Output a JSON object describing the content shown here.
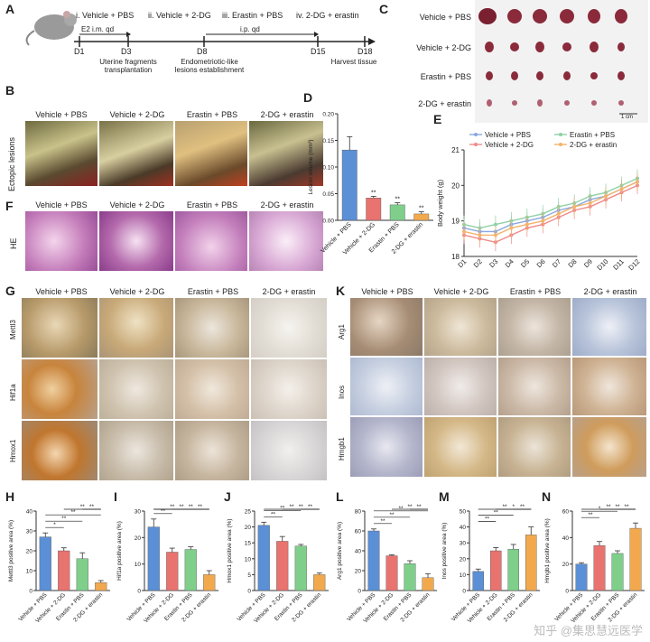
{
  "panels": {
    "A": "A",
    "B": "B",
    "C": "C",
    "D": "D",
    "E": "E",
    "F": "F",
    "G": "G",
    "H": "H",
    "I": "I",
    "J": "J",
    "K": "K",
    "L": "L",
    "M": "M",
    "N": "N"
  },
  "groups": [
    "Vehicle + PBS",
    "Vehicle + 2-DG",
    "Erastin + PBS",
    "2-DG + erastin"
  ],
  "panelA": {
    "steps": [
      "i. Vehicle + PBS",
      "ii. Vehicle + 2-DG",
      "iii. Erastin + PBS",
      "iv. 2-DG + erastin"
    ],
    "e2": "E2 i.m. qd",
    "ip": "i.p. qd",
    "days": [
      "D1",
      "D3",
      "D8",
      "D15",
      "D18"
    ],
    "notes": [
      "Uterine fragments\ntransplantation",
      "Endometriotic-like\nlesions establishment",
      "Harvest tissue"
    ]
  },
  "panelB": {
    "rowlabel": "Ectopic lesions"
  },
  "panelF": {
    "rowlabel": "HE"
  },
  "panelG": {
    "rows": [
      "Mettl3",
      "Hif1a",
      "Hmox1"
    ]
  },
  "panelK": {
    "rows": [
      "Arg1",
      "Inos",
      "Hmgb1"
    ]
  },
  "panelC": {
    "scale": "1 cm"
  },
  "colors": {
    "blue": "#5b8fd6",
    "red": "#e8736f",
    "green": "#7fcf8a",
    "orange": "#f2a94e",
    "lineBlue": "#8aa8e0",
    "lineRed": "#ef8a8a",
    "lineGreen": "#8fd1a6",
    "lineOrange": "#f3b36b"
  },
  "chart_data": [
    {
      "id": "D",
      "type": "bar",
      "categories": [
        "Vehicle + PBS",
        "Vehicle + 2-DG",
        "Erastin + PBS",
        "2-DG + erastin"
      ],
      "values": [
        0.132,
        0.042,
        0.029,
        0.012
      ],
      "errors": [
        0.025,
        0.003,
        0.004,
        0.004
      ],
      "ylabel": "Lesion volume (mm³)",
      "ylim": [
        0,
        0.2
      ],
      "yticks": [
        "0.00",
        "0.05",
        "0.10",
        "0.15",
        "0.20"
      ],
      "sig": [
        "**",
        "**",
        "**"
      ]
    },
    {
      "id": "E",
      "type": "line",
      "x": [
        "D1",
        "D2",
        "D3",
        "D4",
        "D5",
        "D6",
        "D7",
        "D8",
        "D9",
        "D10",
        "D11",
        "D12"
      ],
      "ylabel": "Body weight (g)",
      "ylim": [
        18,
        21
      ],
      "yticks": [
        "18",
        "19",
        "20",
        "21"
      ],
      "series": [
        {
          "name": "Vehicle + PBS",
          "values": [
            18.8,
            18.7,
            18.7,
            18.9,
            19.0,
            19.1,
            19.3,
            19.4,
            19.6,
            19.7,
            19.9,
            20.1
          ]
        },
        {
          "name": "Erastin + PBS",
          "values": [
            18.9,
            18.8,
            18.9,
            19.0,
            19.1,
            19.2,
            19.4,
            19.5,
            19.7,
            19.8,
            20.0,
            20.2
          ]
        },
        {
          "name": "Vehicle + 2-DG",
          "values": [
            18.6,
            18.5,
            18.4,
            18.6,
            18.8,
            18.9,
            19.1,
            19.3,
            19.4,
            19.6,
            19.8,
            20.0
          ]
        },
        {
          "name": "2-DG + erastin",
          "values": [
            18.7,
            18.6,
            18.6,
            18.8,
            18.9,
            19.0,
            19.2,
            19.4,
            19.5,
            19.7,
            19.9,
            20.1
          ]
        }
      ]
    },
    {
      "id": "H",
      "type": "bar",
      "categories": [
        "Vehicle + PBS",
        "Vehicle + 2-DG",
        "Erastin + PBS",
        "2-DG + erastin"
      ],
      "values": [
        27,
        20,
        16,
        4
      ],
      "errors": [
        2,
        1.5,
        3,
        1
      ],
      "ylabel": "Mettl3 positive area (%)",
      "ylim": [
        0,
        40
      ],
      "yticks": [
        "0",
        "10",
        "20",
        "30",
        "40"
      ],
      "sig": [
        "*",
        "**",
        "**",
        "**",
        "**"
      ]
    },
    {
      "id": "I",
      "type": "bar",
      "categories": [
        "Vehicle + PBS",
        "Vehicle + 2-DG",
        "Erastin + PBS",
        "2-DG + erastin"
      ],
      "values": [
        24,
        14.5,
        15.5,
        6
      ],
      "errors": [
        3,
        1.5,
        1,
        1.5
      ],
      "ylabel": "Hif1a positive area (%)",
      "ylim": [
        0,
        30
      ],
      "yticks": [
        "0",
        "10",
        "20",
        "30"
      ],
      "sig": [
        "**",
        "**",
        "**",
        "**",
        "**"
      ]
    },
    {
      "id": "J",
      "type": "bar",
      "categories": [
        "Vehicle + PBS",
        "Vehicle + 2-DG",
        "Erastin + PBS",
        "2-DG + erastin"
      ],
      "values": [
        20.5,
        15.5,
        14,
        5
      ],
      "errors": [
        1,
        1.5,
        0.5,
        0.5
      ],
      "ylabel": "Hmox1 positive area (%)",
      "ylim": [
        0,
        25
      ],
      "yticks": [
        "0",
        "5",
        "10",
        "15",
        "20",
        "25"
      ],
      "sig": [
        "**",
        "**",
        "**",
        "**",
        "**"
      ]
    },
    {
      "id": "L",
      "type": "bar",
      "categories": [
        "Vehicle + PBS",
        "Vehicle + 2-DG",
        "Erastin + PBS",
        "2-DG + erastin"
      ],
      "values": [
        60,
        35,
        27,
        13
      ],
      "errors": [
        2,
        1,
        3,
        4
      ],
      "ylabel": "Arg1 positive area (%)",
      "ylim": [
        0,
        80
      ],
      "yticks": [
        "0",
        "20",
        "40",
        "60",
        "80"
      ],
      "sig": [
        "**",
        "**",
        "**",
        "**",
        "**"
      ]
    },
    {
      "id": "M",
      "type": "bar",
      "categories": [
        "Vehicle + PBS",
        "Vehicle + 2-DG",
        "Erastin + PBS",
        "2-DG + erastin"
      ],
      "values": [
        12,
        25,
        26,
        35
      ],
      "errors": [
        1.5,
        2,
        3,
        5
      ],
      "ylabel": "Inos positive area (%)",
      "ylim": [
        0,
        50
      ],
      "yticks": [
        "0",
        "10",
        "20",
        "30",
        "40",
        "50"
      ],
      "sig": [
        "**",
        "**",
        "**",
        "**",
        "*"
      ]
    },
    {
      "id": "N",
      "type": "bar",
      "categories": [
        "Vehicle + PBS",
        "Vehicle + 2-DG",
        "Erastin + PBS",
        "2-DG + erastin"
      ],
      "values": [
        20,
        34,
        28,
        47
      ],
      "errors": [
        1,
        3,
        2,
        4
      ],
      "ylabel": "Hmgb1 positive area (%)",
      "ylim": [
        0,
        60
      ],
      "yticks": [
        "0",
        "20",
        "40",
        "60"
      ],
      "sig": [
        "**",
        "*",
        "**",
        "**",
        "**"
      ]
    }
  ],
  "watermark": "知乎 @集思慧远医学"
}
